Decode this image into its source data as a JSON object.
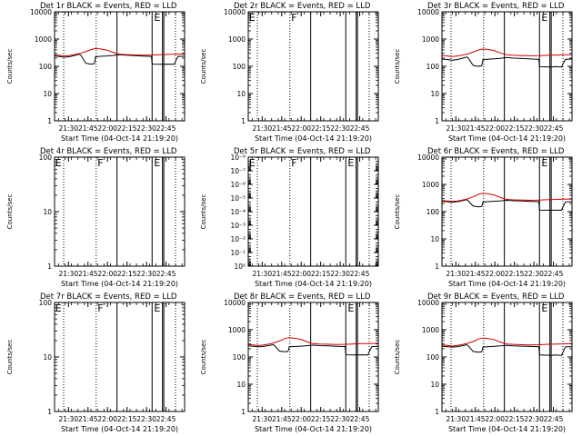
{
  "figure": {
    "title": "Detector count rates, BLACK = Events, RED = LLD"
  },
  "chart_data": [
    {
      "type": "line",
      "title": "Det 1r BLACK = Events, RED = LLD",
      "scale": "log",
      "ylabel": "Counts/sec",
      "xlabel": "Start Time (04-Oct-14 21:19:20)",
      "ylim": [
        1,
        10000
      ],
      "yticks": [
        "1",
        "10",
        "100",
        "1000",
        "10000"
      ],
      "xrange_min": [
        0,
        100
      ],
      "xticks_min": [
        10.7,
        25.7,
        40.7,
        55.7,
        70.7,
        85.7
      ],
      "xtick_labels": [
        "21:30",
        "21:45",
        "22:00",
        "22:15",
        "22:30",
        "22:45"
      ],
      "vlines_dotted_min": [
        7,
        32,
        93
      ],
      "vlines_solid_min": [
        48,
        75,
        83,
        84
      ],
      "flags": [
        {
          "text": "E",
          "t": 76.5
        }
      ],
      "series": [
        {
          "name": "Events",
          "color": "#000000",
          "t": [
            0,
            4,
            8,
            12,
            17,
            19,
            20.2,
            24,
            28,
            30.5,
            31,
            31.5,
            35,
            40,
            45,
            48,
            50,
            55,
            62,
            68,
            74.5,
            75,
            75.5,
            85,
            86,
            92,
            93.5,
            95,
            100
          ],
          "values": [
            240,
            228,
            215,
            228,
            262,
            280,
            255,
            130,
            120,
            125,
            150,
            222,
            232,
            240,
            252,
            262,
            268,
            258,
            248,
            238,
            230,
            125,
            120,
            118,
            120,
            118,
            170,
            230,
            235
          ]
        },
        {
          "name": "LLD",
          "color": "#d00000",
          "t": [
            0,
            4,
            8,
            12,
            17,
            20,
            24,
            28,
            31,
            35,
            40,
            45,
            48,
            50,
            55,
            62,
            68,
            75,
            80,
            85,
            90,
            95,
            100
          ],
          "values": [
            265,
            252,
            240,
            252,
            280,
            300,
            345,
            410,
            445,
            435,
            395,
            325,
            292,
            280,
            270,
            262,
            258,
            262,
            268,
            272,
            275,
            280,
            282
          ]
        }
      ]
    },
    {
      "type": "line",
      "title": "Det 2r BLACK = Events, RED = LLD",
      "scale": "log",
      "ylabel": "Counts/sec",
      "xlabel": "Start Time (04-Oct-14 21:19:20)",
      "ylim": [
        1,
        10000
      ],
      "yticks": [
        "1",
        "10",
        "100",
        "1000",
        "10000"
      ],
      "xrange_min": [
        0,
        100
      ],
      "xticks_min": [
        10.7,
        25.7,
        40.7,
        55.7,
        70.7,
        85.7
      ],
      "xtick_labels": [
        "21:30",
        "21:45",
        "22:00",
        "22:15",
        "22:30",
        "22:45"
      ],
      "vlines_dotted_min": [
        7,
        32,
        93
      ],
      "vlines_solid_min": [
        48,
        75,
        83,
        84
      ],
      "flags": [
        {
          "text": "E",
          "t": 0.5
        },
        {
          "text": "F",
          "t": 33
        }
      ],
      "series": []
    },
    {
      "type": "line",
      "title": "Det 3r BLACK = Events, RED = LLD",
      "scale": "log",
      "ylabel": "Counts/sec",
      "xlabel": "Start Time (04-Oct-14 21:19:20)",
      "ylim": [
        1,
        10000
      ],
      "yticks": [
        "1",
        "10",
        "100",
        "1000",
        "10000"
      ],
      "xrange_min": [
        0,
        100
      ],
      "xticks_min": [
        10.7,
        25.7,
        40.7,
        55.7,
        70.7,
        85.7
      ],
      "xtick_labels": [
        "21:30",
        "21:45",
        "22:00",
        "22:15",
        "22:30",
        "22:45"
      ],
      "vlines_dotted_min": [
        7,
        32,
        93
      ],
      "vlines_solid_min": [
        48,
        75,
        83,
        84
      ],
      "flags": [
        {
          "text": "E",
          "t": 76.5
        }
      ],
      "series": [
        {
          "name": "Events",
          "color": "#000000",
          "t": [
            0,
            4,
            8,
            12,
            17,
            19,
            20.2,
            24,
            28,
            30.5,
            31,
            31.5,
            35,
            40,
            45,
            48,
            50,
            55,
            62,
            68,
            74.5,
            75,
            75.5,
            85,
            86,
            92,
            93.5,
            95,
            100
          ],
          "values": [
            185,
            178,
            168,
            178,
            205,
            218,
            200,
            108,
            100,
            104,
            125,
            175,
            182,
            188,
            196,
            205,
            210,
            200,
            193,
            186,
            180,
            100,
            96,
            95,
            97,
            95,
            135,
            180,
            185
          ]
        },
        {
          "name": "LLD",
          "color": "#d00000",
          "t": [
            0,
            4,
            8,
            12,
            17,
            20,
            24,
            28,
            31,
            35,
            40,
            45,
            48,
            50,
            55,
            62,
            68,
            75,
            80,
            85,
            90,
            95,
            100
          ],
          "values": [
            250,
            240,
            228,
            240,
            268,
            285,
            330,
            395,
            430,
            420,
            380,
            310,
            278,
            265,
            255,
            248,
            244,
            248,
            254,
            258,
            262,
            266,
            268
          ]
        }
      ]
    },
    {
      "type": "line",
      "title": "Det 4r BLACK = Events, RED = LLD",
      "scale": "log",
      "ylabel": "Counts/sec",
      "xlabel": "Start Time (04-Oct-14 21:19:20)",
      "ylim": [
        1,
        100
      ],
      "yticks": [
        "1",
        "10",
        "100"
      ],
      "xrange_min": [
        0,
        100
      ],
      "xticks_min": [
        10.7,
        25.7,
        40.7,
        55.7,
        70.7,
        85.7
      ],
      "xtick_labels": [
        "21:30",
        "21:45",
        "22:00",
        "22:15",
        "22:30",
        "22:45"
      ],
      "vlines_dotted_min": [
        7,
        32,
        93
      ],
      "vlines_solid_min": [
        48,
        75,
        83,
        84
      ],
      "flags": [
        {
          "text": "E",
          "t": 0.5
        },
        {
          "text": "F",
          "t": 33
        },
        {
          "text": "E",
          "t": 76.5
        }
      ],
      "series": []
    },
    {
      "type": "line",
      "title": "Det 5r BLACK = Events, RED = LLD",
      "scale": "log",
      "ylabel": "Counts/sec",
      "xlabel": "Start Time (04-Oct-14 21:19:20)",
      "ylim": [
        1,
        1e-08
      ],
      "yticks": [
        "10⁰",
        "10⁻¹",
        "10⁻²",
        "10⁻³",
        "10⁻⁴",
        "10⁻⁵",
        "10⁻⁶",
        "10⁻⁷",
        "10⁻⁸"
      ],
      "xrange_min": [
        0,
        100
      ],
      "xticks_min": [
        10.7,
        25.7,
        40.7,
        55.7,
        70.7,
        85.7
      ],
      "xtick_labels": [
        "21:30",
        "21:45",
        "22:00",
        "22:15",
        "22:30",
        "22:45"
      ],
      "vlines_dotted_min": [
        7,
        32,
        93
      ],
      "vlines_solid_min": [
        48,
        75,
        83,
        84
      ],
      "flags": [
        {
          "text": "E",
          "t": 0.5
        },
        {
          "text": "F",
          "t": 33
        },
        {
          "text": "E",
          "t": 76.5
        }
      ],
      "series": []
    },
    {
      "type": "line",
      "title": "Det 6r BLACK = Events, RED = LLD",
      "scale": "log",
      "ylabel": "Counts/sec",
      "xlabel": "Start Time (04-Oct-14 21:19:20)",
      "ylim": [
        1,
        10000
      ],
      "yticks": [
        "1",
        "10",
        "100",
        "1000",
        "10000"
      ],
      "xrange_min": [
        0,
        100
      ],
      "xticks_min": [
        10.7,
        25.7,
        40.7,
        55.7,
        70.7,
        85.7
      ],
      "xtick_labels": [
        "21:30",
        "21:45",
        "22:00",
        "22:15",
        "22:30",
        "22:45"
      ],
      "vlines_dotted_min": [
        7,
        32,
        93
      ],
      "vlines_solid_min": [
        48,
        75,
        83,
        84
      ],
      "flags": [
        {
          "text": "E",
          "t": 76.5
        }
      ],
      "series": [
        {
          "name": "Events",
          "color": "#000000",
          "t": [
            0,
            4,
            8,
            12,
            17,
            19,
            20.2,
            24,
            28,
            30.5,
            31,
            31.5,
            35,
            40,
            45,
            48,
            50,
            55,
            62,
            68,
            74.5,
            75,
            75.5,
            85,
            86,
            92,
            93.5,
            95,
            100
          ],
          "values": [
            240,
            232,
            222,
            232,
            262,
            275,
            250,
            160,
            150,
            155,
            175,
            225,
            232,
            240,
            250,
            258,
            262,
            252,
            245,
            238,
            232,
            120,
            115,
            112,
            115,
            112,
            165,
            228,
            232
          ]
        },
        {
          "name": "LLD",
          "color": "#d00000",
          "t": [
            0,
            4,
            8,
            12,
            17,
            20,
            24,
            28,
            31,
            35,
            40,
            45,
            48,
            50,
            55,
            62,
            68,
            75,
            80,
            85,
            90,
            95,
            100
          ],
          "values": [
            255,
            246,
            236,
            246,
            275,
            300,
            350,
            430,
            470,
            455,
            410,
            330,
            295,
            282,
            272,
            266,
            262,
            266,
            274,
            280,
            284,
            288,
            290
          ]
        }
      ]
    },
    {
      "type": "line",
      "title": "Det 7r BLACK = Events, RED = LLD",
      "scale": "log",
      "ylabel": "Counts/sec",
      "xlabel": "Start Time (04-Oct-14 21:19:20)",
      "ylim": [
        1,
        100
      ],
      "yticks": [
        "1",
        "10",
        "100"
      ],
      "xrange_min": [
        0,
        100
      ],
      "xticks_min": [
        10.7,
        25.7,
        40.7,
        55.7,
        70.7,
        85.7
      ],
      "xtick_labels": [
        "21:30",
        "21:45",
        "22:00",
        "22:15",
        "22:30",
        "22:45"
      ],
      "vlines_dotted_min": [
        7,
        32,
        93
      ],
      "vlines_solid_min": [
        48,
        75,
        83,
        84
      ],
      "flags": [
        {
          "text": "E",
          "t": 0.5
        },
        {
          "text": "F",
          "t": 33
        },
        {
          "text": "E",
          "t": 76.5
        }
      ],
      "series": []
    },
    {
      "type": "line",
      "title": "Det 8r BLACK = Events, RED = LLD",
      "scale": "log",
      "ylabel": "Counts/sec",
      "xlabel": "Start Time (04-Oct-14 21:19:20)",
      "ylim": [
        1,
        10000
      ],
      "yticks": [
        "1",
        "10",
        "100",
        "1000",
        "10000"
      ],
      "xrange_min": [
        0,
        100
      ],
      "xticks_min": [
        10.7,
        25.7,
        40.7,
        55.7,
        70.7,
        85.7
      ],
      "xtick_labels": [
        "21:30",
        "21:45",
        "22:00",
        "22:15",
        "22:30",
        "22:45"
      ],
      "vlines_dotted_min": [
        7,
        32,
        93
      ],
      "vlines_solid_min": [
        48,
        75,
        83,
        84
      ],
      "flags": [
        {
          "text": "E",
          "t": 76.5
        }
      ],
      "series": [
        {
          "name": "Events",
          "color": "#000000",
          "t": [
            0,
            4,
            8,
            12,
            17,
            19,
            20.2,
            24,
            28,
            30.5,
            31,
            31.5,
            35,
            40,
            45,
            48,
            50,
            55,
            62,
            68,
            74.5,
            75,
            75.5,
            85,
            86,
            92,
            93.5,
            95,
            100
          ],
          "values": [
            255,
            245,
            235,
            245,
            270,
            285,
            262,
            165,
            155,
            160,
            180,
            235,
            242,
            250,
            260,
            268,
            272,
            262,
            255,
            248,
            242,
            125,
            120,
            118,
            120,
            118,
            172,
            240,
            245
          ]
        },
        {
          "name": "LLD",
          "color": "#d00000",
          "t": [
            0,
            4,
            8,
            12,
            17,
            20,
            24,
            28,
            31,
            35,
            40,
            45,
            48,
            50,
            55,
            62,
            68,
            75,
            80,
            85,
            90,
            95,
            100
          ],
          "values": [
            285,
            275,
            262,
            275,
            305,
            330,
            385,
            470,
            510,
            495,
            450,
            365,
            325,
            310,
            300,
            292,
            288,
            292,
            300,
            306,
            310,
            315,
            318
          ]
        }
      ]
    },
    {
      "type": "line",
      "title": "Det 9r BLACK = Events, RED = LLD",
      "scale": "log",
      "ylabel": "Counts/sec",
      "xlabel": "Start Time (04-Oct-14 21:19:20)",
      "ylim": [
        1,
        10000
      ],
      "yticks": [
        "1",
        "10",
        "100",
        "1000",
        "10000"
      ],
      "xrange_min": [
        0,
        100
      ],
      "xticks_min": [
        10.7,
        25.7,
        40.7,
        55.7,
        70.7,
        85.7
      ],
      "xtick_labels": [
        "21:30",
        "21:45",
        "22:00",
        "22:15",
        "22:30",
        "22:45"
      ],
      "vlines_dotted_min": [
        7,
        32,
        93
      ],
      "vlines_solid_min": [
        48,
        75,
        83,
        84
      ],
      "flags": [
        {
          "text": "E",
          "t": 76.5
        }
      ],
      "series": [
        {
          "name": "Events",
          "color": "#000000",
          "t": [
            0,
            4,
            8,
            12,
            17,
            19,
            20.2,
            24,
            28,
            30.5,
            31,
            31.5,
            35,
            40,
            45,
            48,
            50,
            55,
            62,
            68,
            74.5,
            75,
            75.5,
            85,
            86,
            92,
            93.5,
            95,
            100
          ],
          "values": [
            250,
            240,
            230,
            240,
            268,
            282,
            258,
            160,
            150,
            155,
            178,
            230,
            238,
            246,
            256,
            264,
            268,
            258,
            250,
            244,
            238,
            122,
            118,
            115,
            118,
            115,
            168,
            235,
            240
          ]
        },
        {
          "name": "LLD",
          "color": "#d00000",
          "t": [
            0,
            4,
            8,
            12,
            17,
            20,
            24,
            28,
            31,
            35,
            40,
            45,
            48,
            50,
            55,
            62,
            68,
            75,
            80,
            85,
            90,
            95,
            100
          ],
          "values": [
            275,
            265,
            252,
            265,
            295,
            318,
            370,
            455,
            495,
            480,
            435,
            352,
            315,
            300,
            290,
            282,
            278,
            282,
            290,
            296,
            300,
            305,
            308
          ]
        }
      ]
    }
  ]
}
